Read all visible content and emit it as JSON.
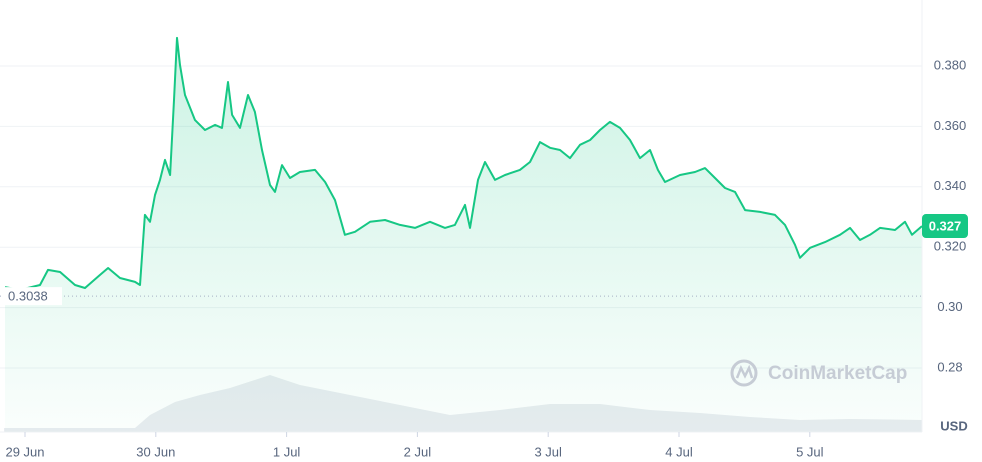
{
  "chart_data": {
    "type": "line",
    "x": [
      -0.153,
      -0.038,
      0.115,
      0.176,
      0.268,
      0.382,
      0.459,
      0.573,
      0.635,
      0.726,
      0.841,
      0.879,
      0.917,
      0.956,
      0.994,
      1.032,
      1.07,
      1.109,
      1.139,
      1.162,
      1.185,
      1.223,
      1.3,
      1.376,
      1.453,
      1.506,
      1.552,
      1.583,
      1.644,
      1.705,
      1.758,
      1.812,
      1.873,
      1.911,
      1.965,
      2.026,
      2.102,
      2.217,
      2.294,
      2.37,
      2.446,
      2.523,
      2.638,
      2.752,
      2.867,
      2.982,
      3.096,
      3.211,
      3.287,
      3.364,
      3.402,
      3.463,
      3.517,
      3.593,
      3.67,
      3.784,
      3.861,
      3.937,
      4.014,
      4.09,
      4.167,
      4.243,
      4.32,
      4.396,
      4.472,
      4.549,
      4.625,
      4.702,
      4.778,
      4.839,
      4.893,
      5.008,
      5.122,
      5.199,
      5.275,
      5.352,
      5.428,
      5.505,
      5.619,
      5.734,
      5.81,
      5.887,
      5.925,
      6.002,
      6.116,
      6.231,
      6.307,
      6.384,
      6.46,
      6.537,
      6.651,
      6.728,
      6.781,
      6.858
    ],
    "series": [
      {
        "color": "#16c784",
        "values": [
          0.3068,
          0.3059,
          0.3075,
          0.3125,
          0.3118,
          0.3075,
          0.3065,
          0.3108,
          0.3131,
          0.3098,
          0.3085,
          0.3075,
          0.3307,
          0.3284,
          0.3373,
          0.3423,
          0.3489,
          0.3439,
          0.3687,
          0.3893,
          0.3803,
          0.3704,
          0.3621,
          0.3588,
          0.3605,
          0.3595,
          0.3747,
          0.3638,
          0.3595,
          0.3704,
          0.3648,
          0.3522,
          0.3406,
          0.3383,
          0.3472,
          0.3429,
          0.3449,
          0.3456,
          0.3416,
          0.3356,
          0.3241,
          0.3251,
          0.3284,
          0.329,
          0.3274,
          0.3264,
          0.3284,
          0.3264,
          0.3274,
          0.334,
          0.3264,
          0.3423,
          0.3482,
          0.3423,
          0.3439,
          0.3456,
          0.3482,
          0.3548,
          0.3529,
          0.3522,
          0.3495,
          0.3539,
          0.3555,
          0.3588,
          0.3615,
          0.3595,
          0.3555,
          0.3495,
          0.3522,
          0.3456,
          0.3416,
          0.3439,
          0.3449,
          0.3462,
          0.3429,
          0.3396,
          0.3383,
          0.3323,
          0.3317,
          0.3307,
          0.3274,
          0.3208,
          0.3165,
          0.3198,
          0.3217,
          0.3241,
          0.3264,
          0.3224,
          0.3241,
          0.3264,
          0.3257,
          0.3284,
          0.3241,
          0.327
        ]
      }
    ],
    "xlim": [
      -0.16,
      6.87
    ],
    "xticks": [
      {
        "value": 0,
        "label": "29 Jun"
      },
      {
        "value": 1,
        "label": "30 Jun"
      },
      {
        "value": 2,
        "label": "1 Jul"
      },
      {
        "value": 3,
        "label": "2 Jul"
      },
      {
        "value": 4,
        "label": "3 Jul"
      },
      {
        "value": 5,
        "label": "4 Jul"
      },
      {
        "value": 6,
        "label": "5 Jul"
      }
    ],
    "ylim": [
      0.26,
      0.4
    ],
    "yticks": [
      0.28,
      {
        "value": 0.3,
        "label": "0.30"
      },
      {
        "value": 0.32,
        "label": "0.320"
      },
      {
        "value": 0.34,
        "label": "0.340"
      },
      {
        "value": 0.36,
        "label": "0.360"
      },
      {
        "value": 0.38,
        "label": "0.380"
      }
    ],
    "grid": true,
    "y_unit": "USD",
    "open_price": {
      "value": 0.3038,
      "label": "0.3038"
    },
    "current_price": {
      "value": 0.327,
      "label": "0.327"
    },
    "watermark": "CoinMarketCap"
  }
}
